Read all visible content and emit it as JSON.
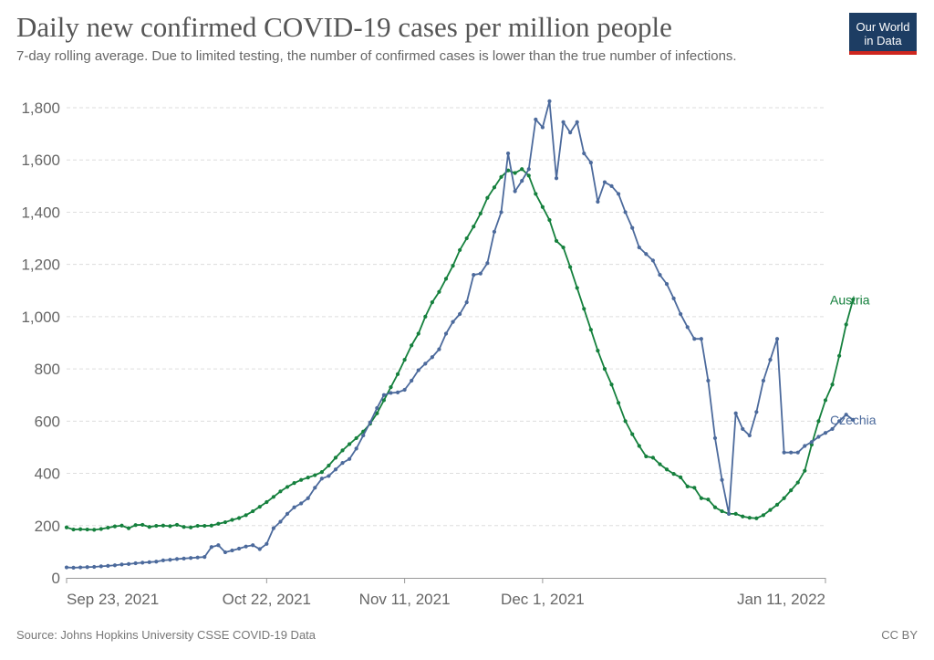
{
  "header": {
    "title": "Daily new confirmed COVID-19 cases per million people",
    "subtitle": "7-day rolling average. Due to limited testing, the number of confirmed cases is lower than the true number of infections.",
    "logo_line1": "Our World",
    "logo_line2": "in Data"
  },
  "footer": {
    "source": "Source: Johns Hopkins University CSSE COVID-19 Data",
    "license": "CC BY"
  },
  "colors": {
    "austria": "#15803d",
    "czechia": "#4c6a9c",
    "grid": "#dddddd",
    "logo_bg": "#1d3d63",
    "logo_accent": "#ce261e"
  },
  "chart_data": {
    "type": "line",
    "title": "Daily new confirmed COVID-19 cases per million people",
    "ylim": [
      0,
      1800
    ],
    "yticks": [
      0,
      200,
      400,
      600,
      800,
      1000,
      1200,
      1400,
      1600,
      1800
    ],
    "ytick_labels": [
      "0",
      "200",
      "400",
      "600",
      "800",
      "1,000",
      "1,200",
      "1,400",
      "1,600",
      "1,800"
    ],
    "x_start": "2021-09-23",
    "x_end": "2022-01-11",
    "xticks": [
      "2021-09-23",
      "2021-10-22",
      "2021-11-11",
      "2021-12-01",
      "2022-01-11"
    ],
    "xtick_labels": [
      "Sep 23, 2021",
      "Oct 22, 2021",
      "Nov 11, 2021",
      "Dec 1, 2021",
      "Jan 11, 2022"
    ],
    "grid": true,
    "legend": "end-of-line labels",
    "series": [
      {
        "name": "Austria",
        "values": [
          193,
          185,
          186,
          185,
          184,
          187,
          192,
          197,
          200,
          190,
          202,
          203,
          195,
          199,
          200,
          198,
          203,
          195,
          193,
          199,
          199,
          200,
          207,
          213,
          222,
          229,
          240,
          255,
          272,
          290,
          310,
          331,
          348,
          363,
          375,
          384,
          393,
          405,
          430,
          460,
          488,
          512,
          535,
          560,
          590,
          630,
          680,
          730,
          780,
          835,
          890,
          935,
          1000,
          1055,
          1095,
          1145,
          1195,
          1255,
          1300,
          1345,
          1395,
          1455,
          1495,
          1535,
          1560,
          1550,
          1565,
          1540,
          1470,
          1420,
          1370,
          1290,
          1265,
          1190,
          1110,
          1030,
          950,
          870,
          800,
          740,
          670,
          600,
          550,
          505,
          465,
          460,
          435,
          415,
          398,
          385,
          350,
          345,
          305,
          300,
          270,
          255,
          245,
          245,
          235,
          230,
          228,
          240,
          260,
          280,
          305,
          335,
          365,
          410,
          510,
          600,
          680,
          740,
          850,
          970,
          1065
        ]
      },
      {
        "name": "Czechia",
        "values": [
          40,
          39,
          40,
          41,
          42,
          44,
          46,
          48,
          51,
          53,
          56,
          58,
          60,
          62,
          67,
          69,
          72,
          74,
          76,
          78,
          80,
          118,
          125,
          98,
          105,
          112,
          120,
          125,
          110,
          130,
          190,
          215,
          245,
          270,
          285,
          305,
          345,
          380,
          390,
          415,
          440,
          455,
          495,
          545,
          595,
          650,
          700,
          708,
          710,
          720,
          755,
          795,
          820,
          845,
          875,
          935,
          980,
          1010,
          1055,
          1160,
          1165,
          1205,
          1325,
          1400,
          1625,
          1480,
          1520,
          1565,
          1755,
          1725,
          1825,
          1530,
          1745,
          1705,
          1745,
          1625,
          1590,
          1440,
          1515,
          1500,
          1470,
          1400,
          1340,
          1265,
          1240,
          1215,
          1160,
          1125,
          1070,
          1010,
          960,
          915,
          915,
          755,
          535,
          375,
          245,
          630,
          570,
          545,
          635,
          755,
          835,
          915,
          480,
          480,
          480,
          505,
          520,
          540,
          555,
          570,
          600,
          625,
          605
        ]
      }
    ]
  }
}
